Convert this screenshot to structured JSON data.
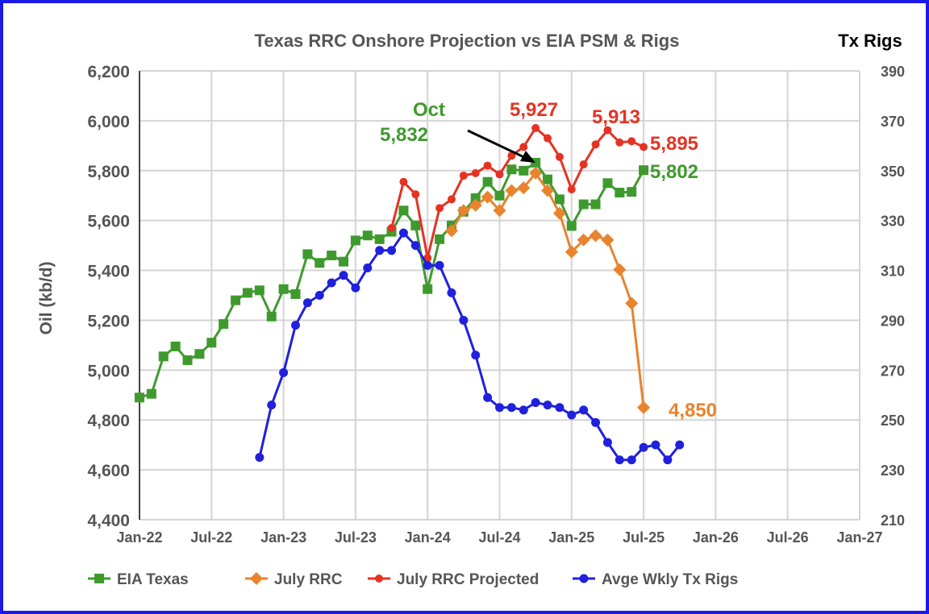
{
  "chart_data": {
    "type": "line",
    "title": "Texas RRC Onshore Projection vs EIA PSM & Rigs",
    "ylabel": "Oil (kb/d)",
    "y2label": "Tx Rigs",
    "ylim": [
      4400,
      6200
    ],
    "y2lim": [
      210,
      390
    ],
    "yticks": [
      "4,400",
      "4,600",
      "4,800",
      "5,000",
      "5,200",
      "5,400",
      "5,600",
      "5,800",
      "6,000",
      "6,200"
    ],
    "y2ticks": [
      "210",
      "230",
      "250",
      "270",
      "290",
      "310",
      "330",
      "350",
      "370",
      "390"
    ],
    "xticks": [
      "Jan-22",
      "Jul-22",
      "Jan-23",
      "Jul-23",
      "Jan-24",
      "Jul-24",
      "Jan-25",
      "Jul-25",
      "Jan-26",
      "Jul-26",
      "Jan-27"
    ],
    "grid": true,
    "legend_position": "bottom",
    "series": [
      {
        "name": "EIA Texas",
        "color": "#3f9a2e",
        "marker": "square",
        "axis": "left",
        "start_month": 0,
        "values": [
          4890,
          4905,
          5055,
          5095,
          5040,
          5065,
          5110,
          5185,
          5280,
          5310,
          5320,
          5215,
          5325,
          5305,
          5465,
          5430,
          5460,
          5435,
          5520,
          5540,
          5525,
          5555,
          5640,
          5580,
          5325,
          5525,
          5580,
          5635,
          5690,
          5755,
          5700,
          5805,
          5800,
          5832,
          5765,
          5685,
          5578,
          5665,
          5665,
          5750,
          5712,
          5715,
          5802
        ]
      },
      {
        "name": "July RRC",
        "color": "#e8832e",
        "marker": "diamond",
        "axis": "left",
        "start_month": 26,
        "values": [
          5559,
          5640,
          5661,
          5694,
          5640,
          5720,
          5731,
          5790,
          5720,
          5629,
          5474,
          5522,
          5539,
          5522,
          5403,
          5268,
          4850
        ]
      },
      {
        "name": "July RRC Projected",
        "color": "#e53323",
        "marker": "circle",
        "axis": "left",
        "start_month": 21,
        "values": [
          5570,
          5755,
          5705,
          5450,
          5650,
          5685,
          5780,
          5790,
          5820,
          5785,
          5860,
          5895,
          5971,
          5930,
          5855,
          5725,
          5825,
          5905,
          5962,
          5913,
          5918,
          5895
        ]
      },
      {
        "name": "Avge Wkly Tx Rigs",
        "color": "#2020dd",
        "marker": "circle",
        "axis": "right",
        "start_month": 10,
        "values": [
          235,
          256,
          269,
          288,
          297,
          300,
          305,
          308,
          303,
          311,
          318,
          318,
          325,
          320,
          312,
          312,
          301,
          290,
          276,
          259,
          255,
          255,
          254,
          257,
          256,
          255,
          252,
          254,
          249,
          241,
          234,
          234,
          239,
          240,
          234,
          240
        ]
      }
    ],
    "annotations": [
      {
        "text": "Oct",
        "color": "#3f9a2e"
      },
      {
        "text": "5,832",
        "color": "#3f9a2e"
      },
      {
        "text": "5,927",
        "color": "#e53323"
      },
      {
        "text": "5,913",
        "color": "#e53323"
      },
      {
        "text": "5,895",
        "color": "#e53323"
      },
      {
        "text": "5,802",
        "color": "#3f9a2e"
      },
      {
        "text": "4,850",
        "color": "#e8832e"
      }
    ]
  }
}
